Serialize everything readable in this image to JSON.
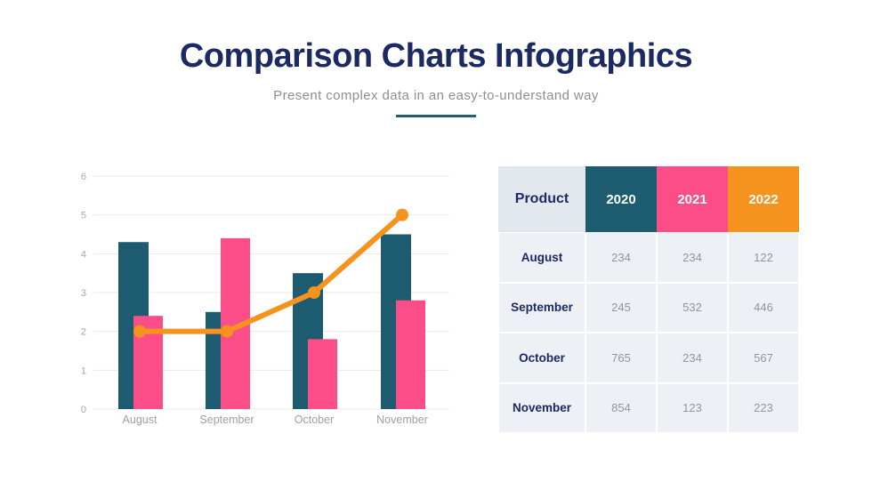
{
  "header": {
    "title": "Comparison Charts Infographics",
    "subtitle": "Present complex data in an easy-to-understand way"
  },
  "colors": {
    "navy": "#1c2a63",
    "teal": "#1d5c70",
    "pink": "#fb4d87",
    "orange": "#f6921e",
    "divider_teal": "#1d6072",
    "subtitle_gray": "#8a8f94",
    "axis_gray": "#a6a6a6",
    "xlabel_gray": "#9aa0a6",
    "value_gray": "#8f96a0",
    "table_body_bg": "#edf1f6",
    "table_product_bg": "#e3e8ee",
    "gridline": "#e9e9e9"
  },
  "chart_data": {
    "type": "bar",
    "subtype": "grouped-bars-with-line-overlay",
    "title": "",
    "xlabel": "",
    "ylabel": "",
    "categories": [
      "August",
      "September",
      "October",
      "November"
    ],
    "series": [
      {
        "name": "2020",
        "render": "bar",
        "color": "#1d5c70",
        "values": [
          4.3,
          2.5,
          3.5,
          4.5
        ]
      },
      {
        "name": "2021",
        "render": "bar",
        "color": "#fb4d87",
        "values": [
          2.4,
          4.4,
          1.8,
          2.8
        ]
      },
      {
        "name": "2022",
        "render": "line",
        "color": "#f6921e",
        "values": [
          2,
          2,
          3,
          5
        ]
      }
    ],
    "ylim": [
      0,
      6
    ],
    "yticks": [
      0,
      1,
      2,
      3,
      4,
      5,
      6
    ],
    "grid": true,
    "legend_position": "none"
  },
  "table": {
    "columns": [
      {
        "label": "Product",
        "bg": "#e3e8ee",
        "text": "#1c2a63"
      },
      {
        "label": "2020",
        "bg": "#1d5c70",
        "text": "#ffffff"
      },
      {
        "label": "2021",
        "bg": "#fb4d87",
        "text": "#ffffff"
      },
      {
        "label": "2022",
        "bg": "#f6921e",
        "text": "#ffffff"
      }
    ],
    "rows": [
      {
        "label": "August",
        "values": [
          "234",
          "234",
          "122"
        ]
      },
      {
        "label": "September",
        "values": [
          "245",
          "532",
          "446"
        ]
      },
      {
        "label": "October",
        "values": [
          "765",
          "234",
          "567"
        ]
      },
      {
        "label": "November",
        "values": [
          "854",
          "123",
          "223"
        ]
      }
    ]
  }
}
